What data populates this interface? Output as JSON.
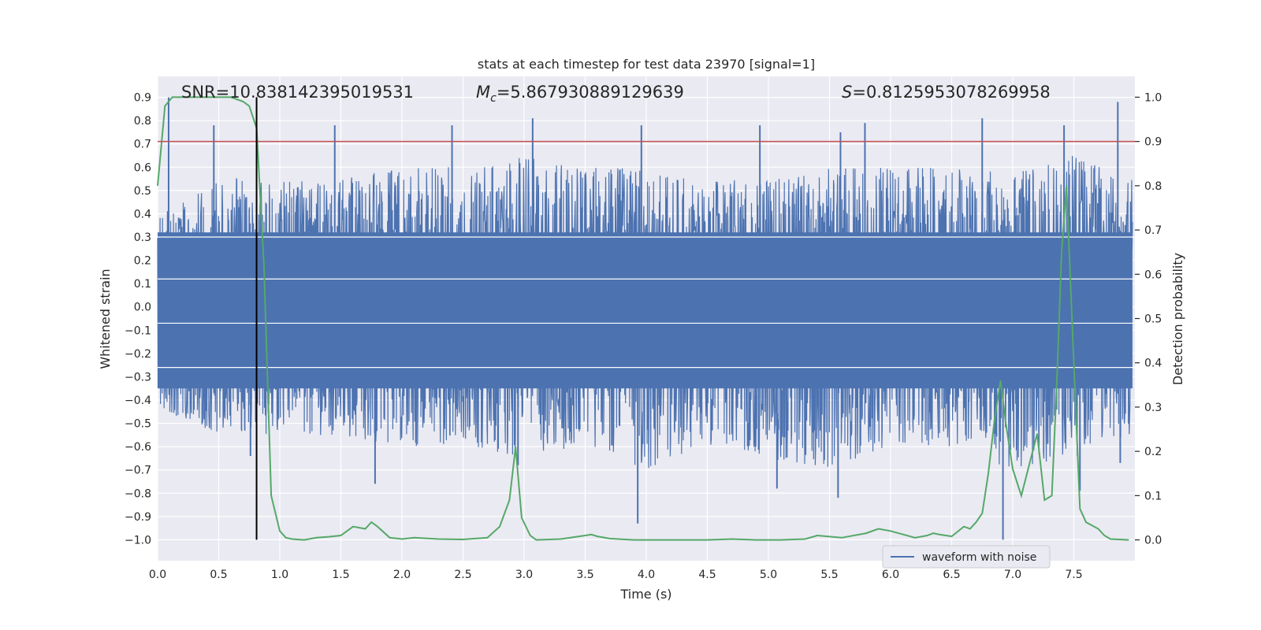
{
  "chart_data": {
    "type": "line",
    "title": "stats at each timestep for test data 23970 [signal=1]",
    "xlabel": "Time (s)",
    "ylabel": "Whitened strain",
    "y2label": "Detection probability",
    "xlim": [
      0.0,
      8.0
    ],
    "ylim": [
      -1.09,
      0.99
    ],
    "y2lim": [
      -0.047,
      1.047
    ],
    "x_ticks": [
      0.0,
      0.5,
      1.0,
      1.5,
      2.0,
      2.5,
      3.0,
      3.5,
      4.0,
      4.5,
      5.0,
      5.5,
      6.0,
      6.5,
      7.0,
      7.5
    ],
    "x_tick_labels": [
      "0.0",
      "0.5",
      "1.0",
      "1.5",
      "2.0",
      "2.5",
      "3.0",
      "3.5",
      "4.0",
      "4.5",
      "5.0",
      "5.5",
      "6.0",
      "6.5",
      "7.0",
      "7.5"
    ],
    "y_ticks": [
      0.9,
      0.8,
      0.7,
      0.6,
      0.5,
      0.4,
      0.3,
      0.2,
      0.1,
      0.0,
      -0.1,
      -0.2,
      -0.3,
      -0.4,
      -0.5,
      -0.6,
      -0.7,
      -0.8,
      -0.9,
      -1.0
    ],
    "y_tick_labels": [
      "0.9",
      "0.8",
      "0.7",
      "0.6",
      "0.5",
      "0.4",
      "0.3",
      "0.2",
      "0.1",
      "0.0",
      "−0.1",
      "−0.2",
      "−0.3",
      "−0.4",
      "−0.5",
      "−0.6",
      "−0.7",
      "−0.8",
      "−0.9",
      "−1.0"
    ],
    "y2_ticks": [
      1.0,
      0.9,
      0.8,
      0.7,
      0.6,
      0.5,
      0.4,
      0.3,
      0.2,
      0.1,
      0.0
    ],
    "y2_tick_labels": [
      "1.0",
      "0.9",
      "0.8",
      "0.7",
      "0.6",
      "0.5",
      "0.4",
      "0.3",
      "0.2",
      "0.1",
      "0.0"
    ],
    "threshold": 0.9,
    "marker_time": 0.81,
    "annotations": {
      "snr": "SNR=10.838142395019531",
      "mc_symbol": "M",
      "mc_sub": "c",
      "mc_value": "=5.867930889129639",
      "s_symbol": "S",
      "s_value": "=0.8125953078269958"
    },
    "legend": {
      "label": "waveform with noise",
      "position": "lower-right"
    },
    "series": [
      {
        "name": "waveform with noise",
        "axis": "left",
        "color": "#4c72b0",
        "envelope_note": "dense noisy strain; approx upper/lower envelope samples",
        "x": [
          0.0,
          0.5,
          1.0,
          1.5,
          2.0,
          2.5,
          3.0,
          3.5,
          4.0,
          4.5,
          5.0,
          5.5,
          6.0,
          6.5,
          7.0,
          7.5,
          8.0
        ],
        "upper": [
          0.4,
          0.55,
          0.55,
          0.55,
          0.6,
          0.6,
          0.65,
          0.6,
          0.6,
          0.55,
          0.55,
          0.6,
          0.6,
          0.6,
          0.6,
          0.65,
          0.55
        ],
        "lower": [
          -0.45,
          -0.55,
          -0.55,
          -0.55,
          -0.6,
          -0.6,
          -0.65,
          -0.6,
          -0.7,
          -0.6,
          -0.65,
          -0.7,
          -0.6,
          -0.6,
          -0.7,
          -0.65,
          -0.55
        ],
        "spike_high": [
          [
            0.09,
            0.9
          ],
          [
            0.46,
            0.78
          ],
          [
            1.45,
            0.78
          ],
          [
            2.41,
            0.78
          ],
          [
            3.07,
            0.81
          ],
          [
            3.96,
            0.78
          ],
          [
            4.93,
            0.78
          ],
          [
            5.59,
            0.75
          ],
          [
            5.79,
            0.79
          ],
          [
            6.75,
            0.81
          ],
          [
            7.42,
            0.78
          ],
          [
            7.86,
            0.88
          ]
        ],
        "spike_low": [
          [
            0.76,
            -0.64
          ],
          [
            1.78,
            -0.76
          ],
          [
            2.95,
            -0.68
          ],
          [
            3.93,
            -0.93
          ],
          [
            5.07,
            -0.78
          ],
          [
            5.57,
            -0.82
          ],
          [
            6.92,
            -1.0
          ],
          [
            7.55,
            -0.79
          ],
          [
            7.88,
            -0.67
          ]
        ]
      },
      {
        "name": "Detection probability",
        "axis": "right",
        "color": "#55a868",
        "x": [
          0.0,
          0.06,
          0.12,
          0.3,
          0.5,
          0.6,
          0.7,
          0.75,
          0.81,
          0.87,
          0.93,
          1.0,
          1.05,
          1.1,
          1.2,
          1.3,
          1.4,
          1.5,
          1.55,
          1.6,
          1.7,
          1.75,
          1.8,
          1.9,
          2.0,
          2.1,
          2.3,
          2.5,
          2.7,
          2.8,
          2.88,
          2.93,
          2.98,
          3.05,
          3.1,
          3.3,
          3.5,
          3.55,
          3.6,
          3.7,
          3.9,
          4.1,
          4.3,
          4.5,
          4.7,
          4.9,
          5.1,
          5.3,
          5.4,
          5.6,
          5.8,
          5.9,
          6.0,
          6.2,
          6.3,
          6.35,
          6.4,
          6.5,
          6.6,
          6.65,
          6.7,
          6.75,
          6.8,
          6.85,
          6.9,
          6.94,
          7.0,
          7.07,
          7.2,
          7.26,
          7.32,
          7.36,
          7.4,
          7.44,
          7.5,
          7.55,
          7.6,
          7.7,
          7.75,
          7.8,
          7.87,
          7.95
        ],
        "y": [
          0.8,
          0.98,
          1.0,
          1.0,
          1.0,
          1.0,
          0.99,
          0.98,
          0.93,
          0.62,
          0.1,
          0.02,
          0.005,
          0.002,
          0.0,
          0.005,
          0.007,
          0.01,
          0.02,
          0.03,
          0.025,
          0.04,
          0.03,
          0.005,
          0.002,
          0.005,
          0.002,
          0.001,
          0.005,
          0.03,
          0.09,
          0.21,
          0.05,
          0.01,
          0.0,
          0.002,
          0.01,
          0.012,
          0.008,
          0.003,
          0.0,
          0.0,
          0.0,
          0.0,
          0.002,
          0.0,
          0.0,
          0.002,
          0.01,
          0.005,
          0.015,
          0.025,
          0.02,
          0.005,
          0.01,
          0.015,
          0.012,
          0.008,
          0.03,
          0.025,
          0.04,
          0.06,
          0.15,
          0.27,
          0.36,
          0.27,
          0.16,
          0.1,
          0.24,
          0.09,
          0.1,
          0.35,
          0.65,
          0.8,
          0.4,
          0.07,
          0.04,
          0.025,
          0.01,
          0.002,
          0.001,
          0.0
        ]
      }
    ]
  }
}
